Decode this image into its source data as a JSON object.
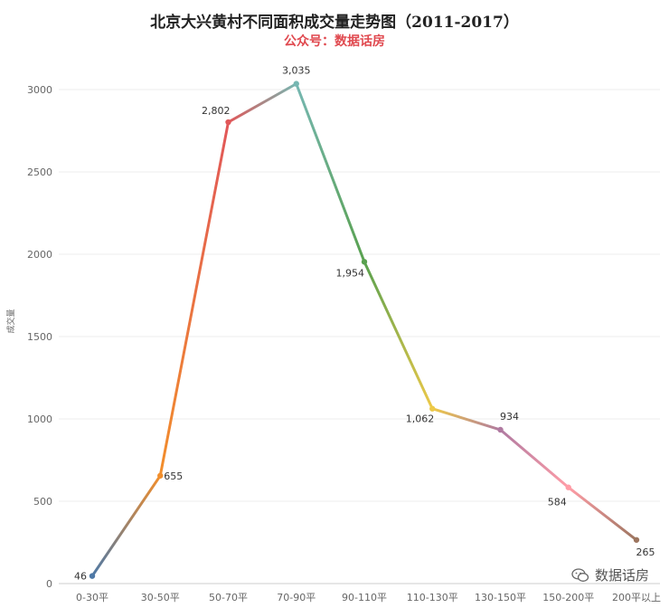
{
  "header": {
    "title": "北京大兴黄村不同面积成交量走势图（2011-2017）",
    "subtitle": "公众号：数据话房"
  },
  "watermark": {
    "text": "数据话房",
    "icon": "wechat-icon"
  },
  "colors": {
    "grid": "#eeeeee",
    "axis": "#cccccc",
    "subtitle": "#e0494f"
  },
  "chart_data": {
    "type": "line",
    "categories": [
      "0-30平",
      "30-50平",
      "50-70平",
      "70-90平",
      "90-110平",
      "110-130平",
      "130-150平",
      "150-200平",
      "200平以上"
    ],
    "values": [
      46,
      655,
      2802,
      3035,
      1954,
      1062,
      934,
      584,
      265
    ],
    "value_labels": [
      "46",
      "655",
      "2,802",
      "3,035",
      "1,954",
      "1,062",
      "934",
      "584",
      "265"
    ],
    "point_colors": [
      "#4e79a7",
      "#f28e2b",
      "#e15759",
      "#76b7b2",
      "#59a14f",
      "#edc948",
      "#b07aa1",
      "#ff9da7",
      "#9c755f"
    ],
    "ylabel": "成交量",
    "xlabel": "",
    "yticks": [
      0,
      500,
      1000,
      1500,
      2000,
      2500,
      3000
    ],
    "ylim": [
      0,
      3200
    ],
    "grid": true,
    "legend": "none"
  }
}
